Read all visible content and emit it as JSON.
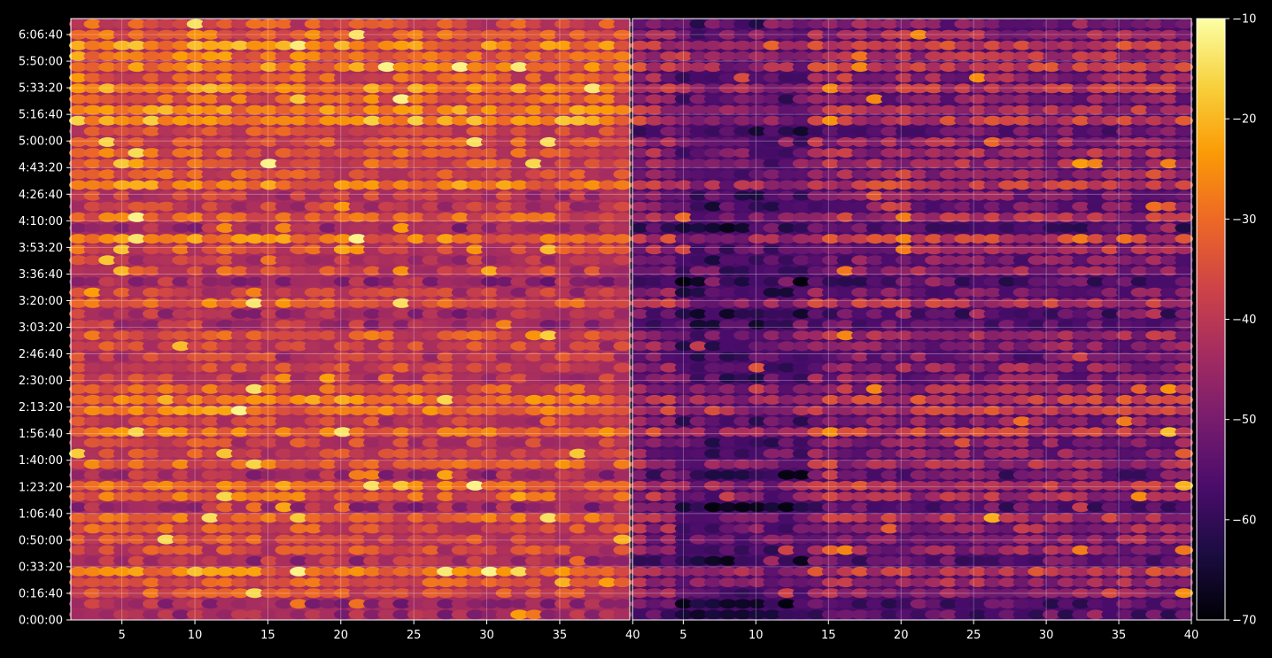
{
  "chart_data": {
    "type": "heatmap",
    "title": "",
    "xlabel": "",
    "ylabel": "",
    "panels": [
      {
        "name": "",
        "xlim": [
          1.5,
          39.8
        ],
        "xticks": [
          "5",
          "10",
          "15",
          "20",
          "25",
          "30",
          "35",
          "40"
        ],
        "xtick_values": [
          5,
          10,
          15,
          20,
          25,
          30,
          35,
          40
        ]
      },
      {
        "name": "",
        "xlim": [
          1.5,
          40
        ],
        "xticks": [
          "5",
          "10",
          "15",
          "20",
          "25",
          "30",
          "35",
          "40"
        ],
        "xtick_values": [
          5,
          10,
          15,
          20,
          25,
          30,
          35,
          40
        ]
      }
    ],
    "y_axis": {
      "unit": "seconds",
      "ylim": [
        0,
        22600
      ],
      "ticks": [
        "0:00:00",
        "0:16:40",
        "0:33:20",
        "0:50:00",
        "1:06:40",
        "1:23:20",
        "1:40:00",
        "1:56:40",
        "2:13:20",
        "2:30:00",
        "2:46:40",
        "3:03:20",
        "3:20:00",
        "3:36:40",
        "3:53:20",
        "4:10:00",
        "4:26:40",
        "4:43:20",
        "5:00:00",
        "5:16:40",
        "5:33:20",
        "5:50:00",
        "6:06:40"
      ],
      "tick_values": [
        0,
        1000,
        2000,
        3000,
        4000,
        5000,
        6000,
        7000,
        8000,
        9000,
        10000,
        11000,
        12000,
        13000,
        14000,
        15000,
        16000,
        17000,
        18000,
        19000,
        20000,
        21000,
        22000
      ]
    },
    "colorbar": {
      "colormap": "inferno",
      "range": [
        -70,
        -10
      ],
      "ticks": [
        "−10",
        "−20",
        "−30",
        "−40",
        "−50",
        "−60",
        "−70"
      ],
      "tick_values": [
        -10,
        -20,
        -30,
        -40,
        -50,
        -60,
        -70
      ]
    },
    "grid": true,
    "colors": {
      "background": "#000000",
      "axis": "#ffffff",
      "grid": "#ffffff",
      "cmap_stops": [
        "#000004",
        "#1b0c41",
        "#4a0c6b",
        "#781c6d",
        "#a52c60",
        "#cf4446",
        "#ed6925",
        "#fb9b06",
        "#f7d13d",
        "#fcffa4"
      ]
    }
  }
}
